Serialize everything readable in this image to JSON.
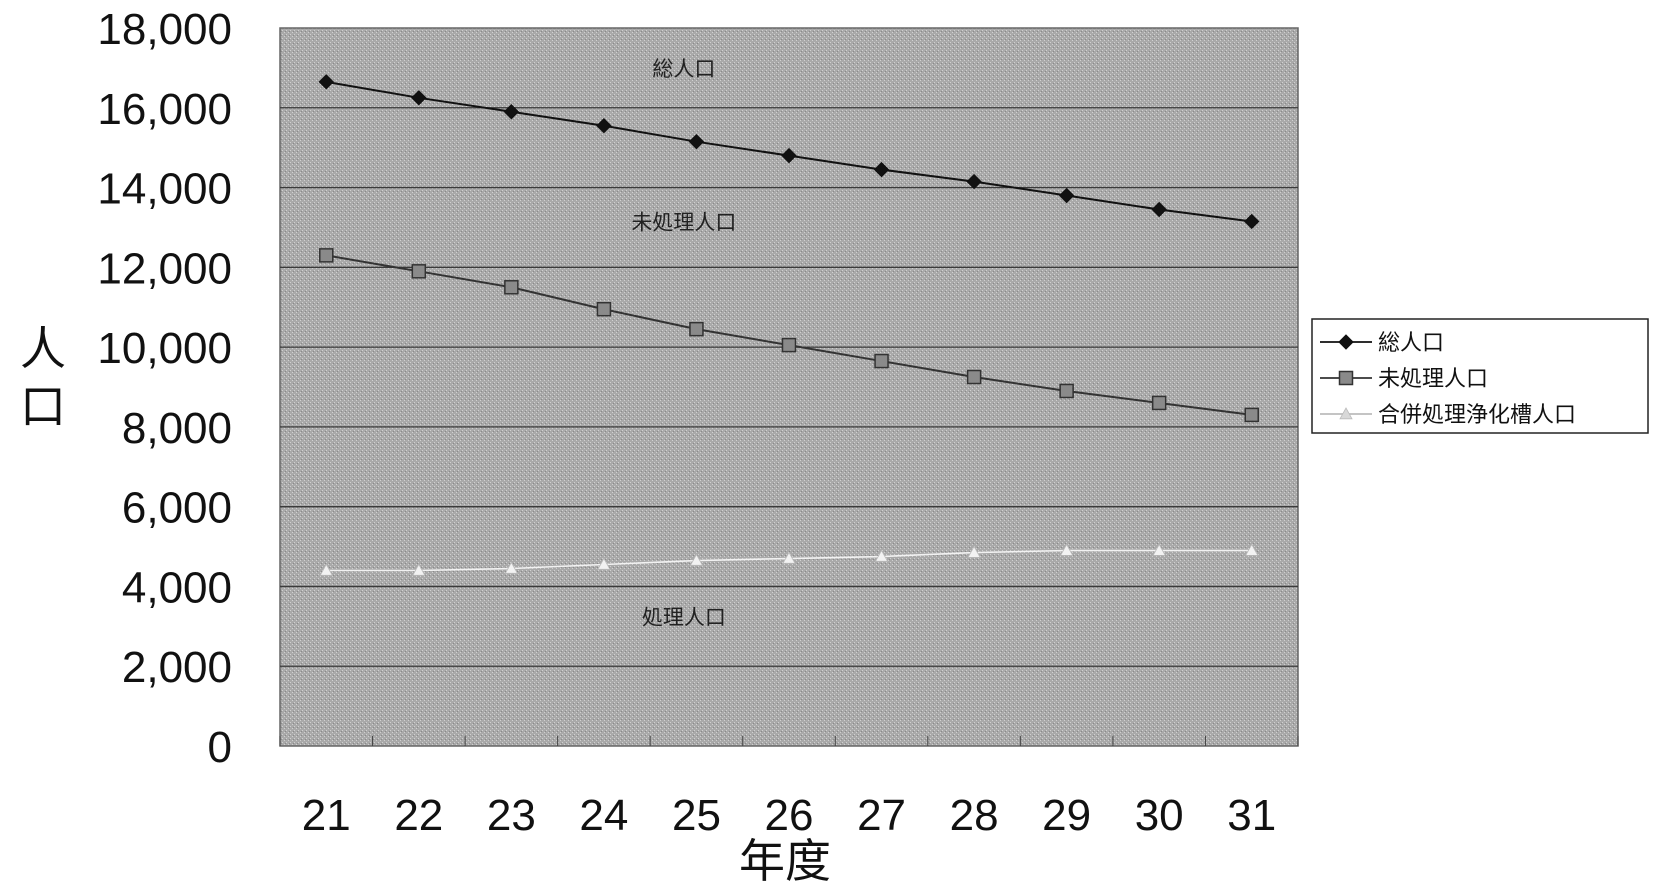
{
  "chart_data": {
    "type": "line",
    "xlabel": "年度",
    "ylabel": "人口",
    "categories": [
      "21",
      "22",
      "23",
      "24",
      "25",
      "26",
      "27",
      "28",
      "29",
      "30",
      "31"
    ],
    "yticks": [
      "0",
      "2,000",
      "4,000",
      "6,000",
      "8,000",
      "10,000",
      "12,000",
      "14,000",
      "16,000",
      "18,000"
    ],
    "ylim": [
      0,
      18000
    ],
    "grid": true,
    "legend_position": "right",
    "series": [
      {
        "name": "総人口",
        "marker": "diamond",
        "color": "#111111",
        "values": [
          16650,
          16250,
          15900,
          15550,
          15150,
          14800,
          14450,
          14150,
          13800,
          13450,
          13150
        ]
      },
      {
        "name": "未処理人口",
        "marker": "square",
        "color": "#333333",
        "values": [
          12300,
          11900,
          11500,
          10950,
          10450,
          10050,
          9650,
          9250,
          8900,
          8600,
          8300
        ]
      },
      {
        "name": "合併処理浄化槽人口",
        "marker": "triangle",
        "color": "#f2f2f2",
        "values": [
          4400,
          4400,
          4450,
          4550,
          4650,
          4700,
          4750,
          4850,
          4900,
          4900,
          4900
        ]
      }
    ],
    "annotations": [
      {
        "text": "総人口",
        "x": "24",
        "y": 17000
      },
      {
        "text": "未処理人口",
        "x": "24",
        "y": 13150
      },
      {
        "text": "処理人口",
        "x": "24",
        "y": 3250
      }
    ]
  }
}
